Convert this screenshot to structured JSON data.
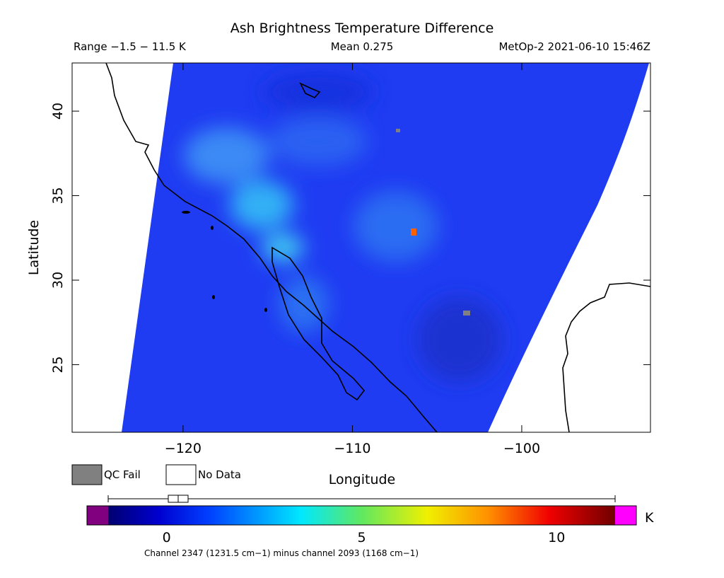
{
  "header": {
    "title": "Ash Brightness Temperature Difference",
    "range": "Range −1.5 − 11.5 K",
    "mean": "Mean 0.275",
    "source": "MetOp-2 2021-06-10 15:46Z"
  },
  "map": {
    "xlabel": "Longitude",
    "ylabel": "Latitude",
    "xlim": [
      -126.55,
      -92.4
    ],
    "ylim": [
      21.0,
      42.85
    ],
    "xticks": [
      {
        "value": -120,
        "label": "−120"
      },
      {
        "value": -110,
        "label": "−110"
      },
      {
        "value": -100,
        "label": "−100"
      }
    ],
    "yticks": [
      25,
      30,
      35,
      40
    ]
  },
  "legend": {
    "qc_fail": "QC Fail",
    "no_data": "No Data"
  },
  "colorbar": {
    "lim": [
      -1.5,
      11.5
    ],
    "ticks": [
      0,
      5,
      10
    ],
    "unit": "K",
    "caption": "Channel 2347 (1231.5 cm−1) minus channel 2093 (1168 cm−1)"
  }
}
